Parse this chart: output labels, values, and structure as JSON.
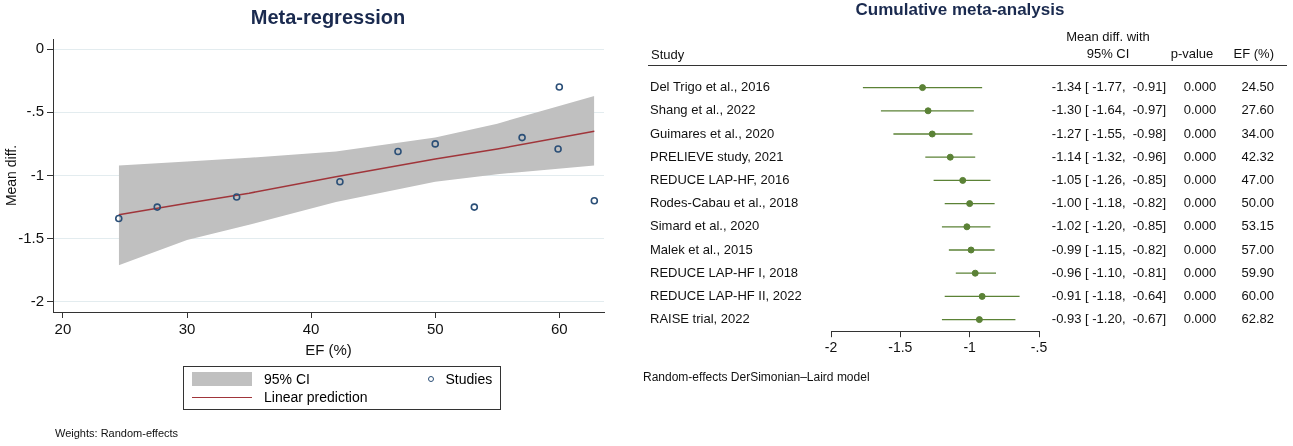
{
  "chart_data": [
    {
      "type": "scatter",
      "title": "Meta-regression",
      "xlabel": "EF (%)",
      "ylabel": "Mean diff.",
      "xlim": [
        19.2,
        63.6
      ],
      "ylim": [
        -2.08,
        0.08
      ],
      "xticks": [
        20,
        30,
        40,
        50,
        60
      ],
      "yticks": [
        {
          "value": 0,
          "label": "0"
        },
        {
          "value": -0.5,
          "label": "-.5"
        },
        {
          "value": -1,
          "label": "-1"
        },
        {
          "value": -1.5,
          "label": "-1.5"
        },
        {
          "value": -2,
          "label": "-2"
        }
      ],
      "grid": "y",
      "legend": "bottom",
      "annotations": [
        "95% CI",
        "Weights: Random-effects"
      ],
      "series": [
        {
          "type": "scatter",
          "name": "Studies",
          "color": "#2b4f77",
          "marker": "circle",
          "x": [
            24.5,
            27.6,
            34,
            42.32,
            47,
            50,
            53.15,
            57,
            59.9,
            60,
            62.82
          ],
          "values": [
            -1.34,
            -1.25,
            -1.17,
            -1.05,
            -0.81,
            -0.75,
            -1.25,
            -0.7,
            -0.79,
            -0.3,
            -1.2
          ]
        },
        {
          "type": "line",
          "name": "Linear prediction",
          "color": "#a0353a",
          "x": [
            24.5,
            30,
            35,
            42,
            50,
            55,
            62.82
          ],
          "values": [
            -1.31,
            -1.22,
            -1.14,
            -1.01,
            -0.87,
            -0.79,
            -0.65
          ],
          "lower": [
            -1.71,
            -1.51,
            -1.39,
            -1.21,
            -1.05,
            -0.99,
            -0.92
          ],
          "upper": [
            -0.92,
            -0.89,
            -0.86,
            -0.81,
            -0.7,
            -0.59,
            -0.37
          ]
        }
      ]
    },
    {
      "type": "scatter",
      "title": "Cumulative meta-analysis",
      "ylabel": "Study",
      "orientation": "horizontal",
      "xlim": [
        -2,
        -0.5
      ],
      "xticks": [
        -2,
        -1.5,
        -1,
        {
          "value": -0.5,
          "label": "-.5"
        }
      ],
      "grid": false,
      "legend": false,
      "categories": [
        "Del Trigo et al., 2016",
        "Shang et al., 2022",
        "Guimares et al., 2020",
        "PRELIEVE study, 2021",
        "REDUCE LAP-HF, 2016",
        "Rodes-Cabau et al., 2018",
        "Simard et al., 2020",
        "Malek et al., 2015",
        "REDUCE LAP-HF I, 2018",
        "REDUCE LAP-HF II, 2022",
        "RAISE trial, 2022"
      ],
      "series": [
        {
          "color": "#5b8236",
          "marker": "circle",
          "values": [
            -1.34,
            -1.3,
            -1.27,
            -1.14,
            -1.05,
            -1.0,
            -1.02,
            -0.99,
            -0.96,
            -0.91,
            -0.93
          ],
          "errors": [
            [
              -1.77,
              -0.91
            ],
            [
              -1.64,
              -0.97
            ],
            [
              -1.55,
              -0.98
            ],
            [
              -1.32,
              -0.96
            ],
            [
              -1.26,
              -0.85
            ],
            [
              -1.18,
              -0.82
            ],
            [
              -1.2,
              -0.85
            ],
            [
              -1.15,
              -0.82
            ],
            [
              -1.1,
              -0.81
            ],
            [
              -1.18,
              -0.64
            ],
            [
              -1.2,
              -0.67
            ]
          ],
          "value_labels": [
            "-1.34 [ -1.77,  -0.91]",
            "-1.30 [ -1.64,  -0.97]",
            "-1.27 [ -1.55,  -0.98]",
            "-1.14 [ -1.32,  -0.96]",
            "-1.05 [ -1.26,  -0.85]",
            "-1.00 [ -1.18,  -0.82]",
            "-1.02 [ -1.20,  -0.85]",
            "-0.99 [ -1.15,  -0.82]",
            "-0.96 [ -1.10,  -0.81]",
            "-0.91 [ -1.18,  -0.64]",
            "-0.93 [ -1.20,  -0.67]"
          ]
        }
      ],
      "annotations": [
        "Mean diff. with 95% CI",
        "p-value",
        "EF (%)",
        "0.000",
        "24.50",
        "0.000",
        "27.60",
        "0.000",
        "34.00",
        "0.000",
        "42.32",
        "0.000",
        "47.00",
        "0.000",
        "50.00",
        "0.000",
        "53.15",
        "0.000",
        "57.00",
        "0.000",
        "59.90",
        "0.000",
        "60.00",
        "0.000",
        "62.82",
        "Random-effects DerSimonian–Laird model"
      ]
    }
  ]
}
